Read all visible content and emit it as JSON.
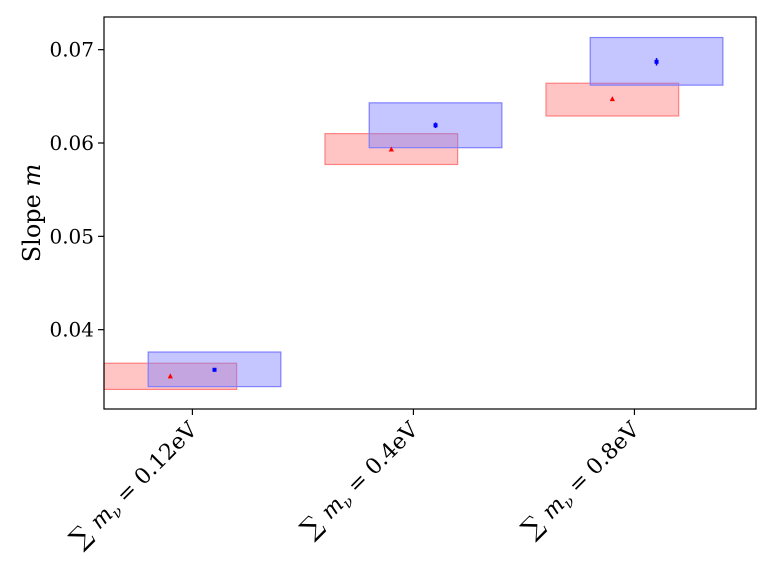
{
  "chart_data": {
    "type": "scatter",
    "title": "",
    "xlabel": "",
    "ylabel": "Slope",
    "ylabel_symbol": "m",
    "ylim": [
      0.0315,
      0.0735
    ],
    "yticks": [
      0.04,
      0.05,
      0.06,
      0.07
    ],
    "ytick_labels": [
      "0.04",
      "0.05",
      "0.06",
      "0.07"
    ],
    "categories": [
      "∑ mν = 0.12eV",
      "∑ mν = 0.4eV",
      "∑ mν = 0.8eV"
    ],
    "series": [
      {
        "name": "red",
        "color": "#ff0000",
        "box_color": "#ff7f7f",
        "marker": "triangle",
        "points": [
          {
            "category_index": 0,
            "offset": -0.1,
            "value": 0.035,
            "err": 0.0002
          },
          {
            "category_index": 1,
            "offset": -0.1,
            "value": 0.0593,
            "err": 0.0002
          },
          {
            "category_index": 2,
            "offset": -0.1,
            "value": 0.0647,
            "err": 0.0002
          }
        ],
        "boxes": [
          {
            "category_index": 0,
            "x_from": -0.4,
            "x_to": 0.2,
            "y_from": 0.0336,
            "y_to": 0.0364
          },
          {
            "category_index": 1,
            "x_from": -0.4,
            "x_to": 0.2,
            "y_from": 0.0577,
            "y_to": 0.061
          },
          {
            "category_index": 2,
            "x_from": -0.4,
            "x_to": 0.2,
            "y_from": 0.0629,
            "y_to": 0.0664
          }
        ]
      },
      {
        "name": "blue",
        "color": "#0000ff",
        "box_color": "#7f7fff",
        "marker": "square",
        "points": [
          {
            "category_index": 0,
            "offset": 0.1,
            "value": 0.0357,
            "err": 0.0002
          },
          {
            "category_index": 1,
            "offset": 0.1,
            "value": 0.0619,
            "err": 0.0003
          },
          {
            "category_index": 2,
            "offset": 0.1,
            "value": 0.0687,
            "err": 0.0004
          }
        ],
        "boxes": [
          {
            "category_index": 0,
            "x_from": -0.2,
            "x_to": 0.4,
            "y_from": 0.0339,
            "y_to": 0.0376
          },
          {
            "category_index": 1,
            "x_from": -0.2,
            "x_to": 0.4,
            "y_from": 0.0595,
            "y_to": 0.0643
          },
          {
            "category_index": 2,
            "x_from": -0.2,
            "x_to": 0.4,
            "y_from": 0.0662,
            "y_to": 0.0713
          }
        ]
      }
    ],
    "xlim": [
      -0.4,
      2.55
    ]
  }
}
